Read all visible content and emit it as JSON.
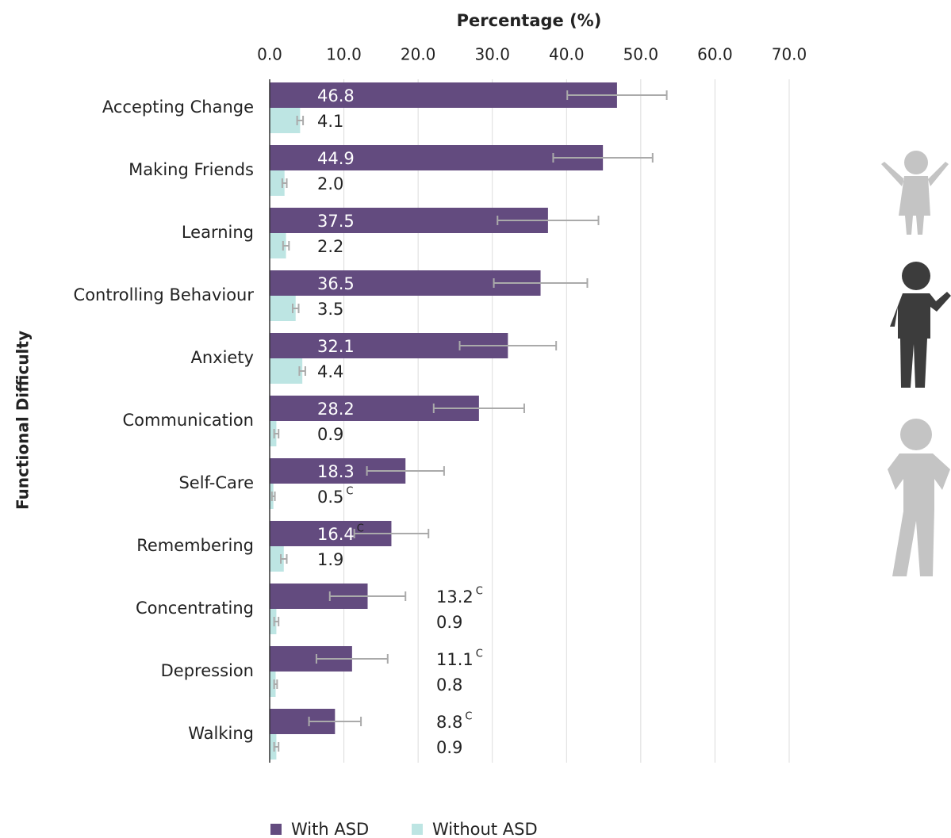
{
  "chart_data": {
    "type": "bar",
    "orientation": "horizontal",
    "x_label": "Percentage (%)",
    "y_label": "Functional Difficulty",
    "categories": [
      "Accepting Change",
      "Making Friends",
      "Learning",
      "Controlling Behaviour",
      "Anxiety",
      "Communication",
      "Self-Care",
      "Remembering",
      "Concentrating",
      "Depression",
      "Walking"
    ],
    "series": [
      {
        "name": "With ASD",
        "color": "#634b7f",
        "values": [
          46.8,
          44.9,
          37.5,
          36.5,
          32.1,
          28.2,
          18.3,
          16.4,
          13.2,
          11.1,
          8.8
        ],
        "value_labels": [
          "46.8",
          "44.9",
          "37.5",
          "36.5",
          "32.1",
          "28.2",
          "18.3",
          "16.4",
          "13.2",
          "11.1",
          "8.8"
        ],
        "footnotes": [
          null,
          null,
          null,
          null,
          null,
          null,
          null,
          "C",
          "C",
          "C",
          "C"
        ],
        "errors": [
          6.7,
          6.7,
          6.8,
          6.3,
          6.5,
          6.1,
          5.2,
          5.0,
          5.1,
          4.8,
          3.5
        ]
      },
      {
        "name": "Without ASD",
        "color": "#bde5e3",
        "values": [
          4.1,
          2.0,
          2.2,
          3.5,
          4.4,
          0.9,
          0.5,
          1.9,
          0.9,
          0.8,
          0.9
        ],
        "value_labels": [
          "4.1",
          "2.0",
          "2.2",
          "3.5",
          "4.4",
          "0.9",
          "0.5",
          "1.9",
          "0.9",
          "0.8",
          "0.9"
        ],
        "footnotes": [
          null,
          null,
          null,
          null,
          null,
          null,
          "C",
          null,
          null,
          null,
          null
        ],
        "errors": [
          0.4,
          0.3,
          0.4,
          0.4,
          0.4,
          0.3,
          0.2,
          0.4,
          0.3,
          0.2,
          0.3
        ]
      }
    ],
    "xlim": [
      0,
      70
    ],
    "xticks": [
      {
        "value": 0,
        "label": "0.0"
      },
      {
        "value": 10,
        "label": "10.0"
      },
      {
        "value": 20,
        "label": "20.0"
      },
      {
        "value": 30,
        "label": "30.0"
      },
      {
        "value": 40,
        "label": "40.0"
      },
      {
        "value": 50,
        "label": "50.0"
      },
      {
        "value": 60,
        "label": "60.0"
      },
      {
        "value": 70,
        "label": "70.0"
      }
    ],
    "grid": true,
    "error_bar_color": "#aaaaaa",
    "legend": "bottom"
  }
}
